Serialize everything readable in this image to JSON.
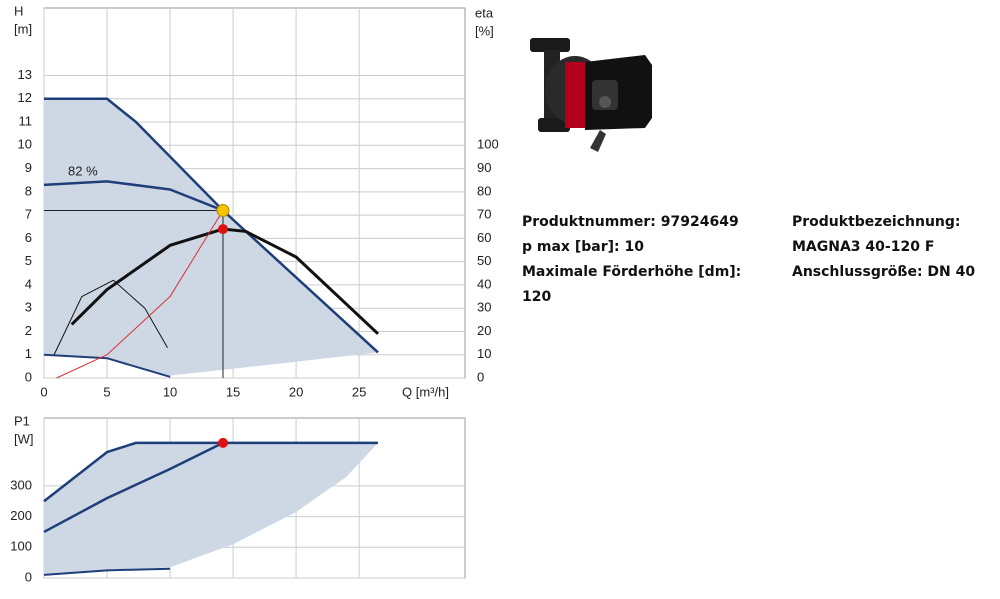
{
  "chart_data": [
    {
      "type": "line",
      "x_label": "Q [m³/h]",
      "y_label": "H",
      "y_unit": "[m]",
      "y2_label": "eta",
      "y2_unit": "[%]",
      "annotation": "82 %",
      "xlim": [
        0,
        33.4
      ],
      "xticks": [
        0,
        5,
        10,
        15,
        20,
        25
      ],
      "ylim": [
        0,
        15.9
      ],
      "yticks": [
        0,
        1,
        2,
        3,
        4,
        5,
        6,
        7,
        8,
        9,
        10,
        11,
        12,
        13
      ],
      "y2lim": [
        0,
        159
      ],
      "y2ticks": [
        0,
        10,
        20,
        30,
        40,
        50,
        60,
        70,
        80,
        90,
        100
      ],
      "grid": true,
      "series": [
        {
          "kind": "area",
          "color": "#cdd8e4",
          "x": [
            0,
            5,
            7.3,
            14.2,
            26.5,
            20,
            15,
            10,
            5,
            0
          ],
          "values": [
            12,
            12,
            11,
            7.2,
            1.1,
            0.7,
            0.4,
            0.1,
            0.85,
            1
          ]
        },
        {
          "kind": "line",
          "color": "#1f3e7a",
          "width": 2.5,
          "x": [
            0,
            5,
            7.3,
            14.2,
            26.5
          ],
          "values": [
            12,
            12,
            11,
            7.2,
            1.1
          ]
        },
        {
          "kind": "line",
          "color": "#1f3e7a",
          "width": 2,
          "x": [
            0,
            5,
            10
          ],
          "values": [
            1,
            0.85,
            0.05
          ]
        },
        {
          "kind": "line",
          "color": "#1f3e7a",
          "width": 2.5,
          "x": [
            0,
            5,
            10,
            14.2
          ],
          "values": [
            8.3,
            8.45,
            8.1,
            7.2
          ]
        },
        {
          "kind": "line",
          "color": "#111111",
          "width": 3,
          "axis": "y2",
          "x": [
            2.2,
            5,
            10,
            14.2,
            16,
            20,
            26.5
          ],
          "values": [
            23,
            38,
            57,
            64,
            63,
            52,
            19
          ]
        },
        {
          "kind": "line",
          "color": "#111111",
          "width": 1,
          "axis": "y2",
          "x": [
            0.8,
            3,
            5.5,
            8,
            9.8
          ],
          "values": [
            10,
            35,
            42,
            30,
            13
          ]
        },
        {
          "kind": "line",
          "color": "#e03030",
          "width": 1,
          "x": [
            1,
            5,
            10,
            14.2
          ],
          "values": [
            0,
            1,
            3.5,
            7.2
          ]
        },
        {
          "kind": "duty",
          "color": "#f5c400",
          "x": [
            14.2
          ],
          "values": [
            7.2
          ]
        },
        {
          "kind": "point",
          "color": "#e01010",
          "axis": "y2",
          "x": [
            14.2
          ],
          "values": [
            64
          ]
        }
      ]
    },
    {
      "type": "line",
      "y_label": "P1",
      "y_unit": "[W]",
      "xlim": [
        0,
        33.4
      ],
      "xticks": [
        0,
        5,
        10,
        15,
        20,
        25
      ],
      "ylim": [
        0,
        521
      ],
      "yticks": [
        0,
        100,
        200,
        300
      ],
      "grid": true,
      "series": [
        {
          "kind": "area",
          "color": "#cdd8e4",
          "x": [
            0,
            5,
            7.3,
            26.5,
            24,
            20,
            15,
            10,
            5,
            0
          ],
          "values": [
            250,
            410,
            440,
            440,
            330,
            215,
            110,
            35,
            25,
            10
          ]
        },
        {
          "kind": "line",
          "color": "#1f3e7a",
          "width": 2.5,
          "x": [
            0,
            5,
            7.3,
            26.5
          ],
          "values": [
            250,
            410,
            440,
            440
          ]
        },
        {
          "kind": "line",
          "color": "#1f3e7a",
          "width": 2.5,
          "x": [
            0,
            5,
            10,
            14.2
          ],
          "values": [
            150,
            260,
            355,
            440
          ]
        },
        {
          "kind": "line",
          "color": "#1f3e7a",
          "width": 2,
          "x": [
            0,
            5,
            10
          ],
          "values": [
            10,
            25,
            30
          ]
        },
        {
          "kind": "point",
          "color": "#e01010",
          "x": [
            14.2
          ],
          "values": [
            440
          ]
        }
      ]
    }
  ],
  "product": {
    "lines_left": [
      "Produktnummer: 97924649",
      "p max [bar]: 10",
      "Maximale Förderhöhe [dm]:",
      "120"
    ],
    "lines_right": [
      "Produktbezeichnung:",
      "MAGNA3 40-120 F",
      "Anschlussgröße: DN 40"
    ]
  }
}
